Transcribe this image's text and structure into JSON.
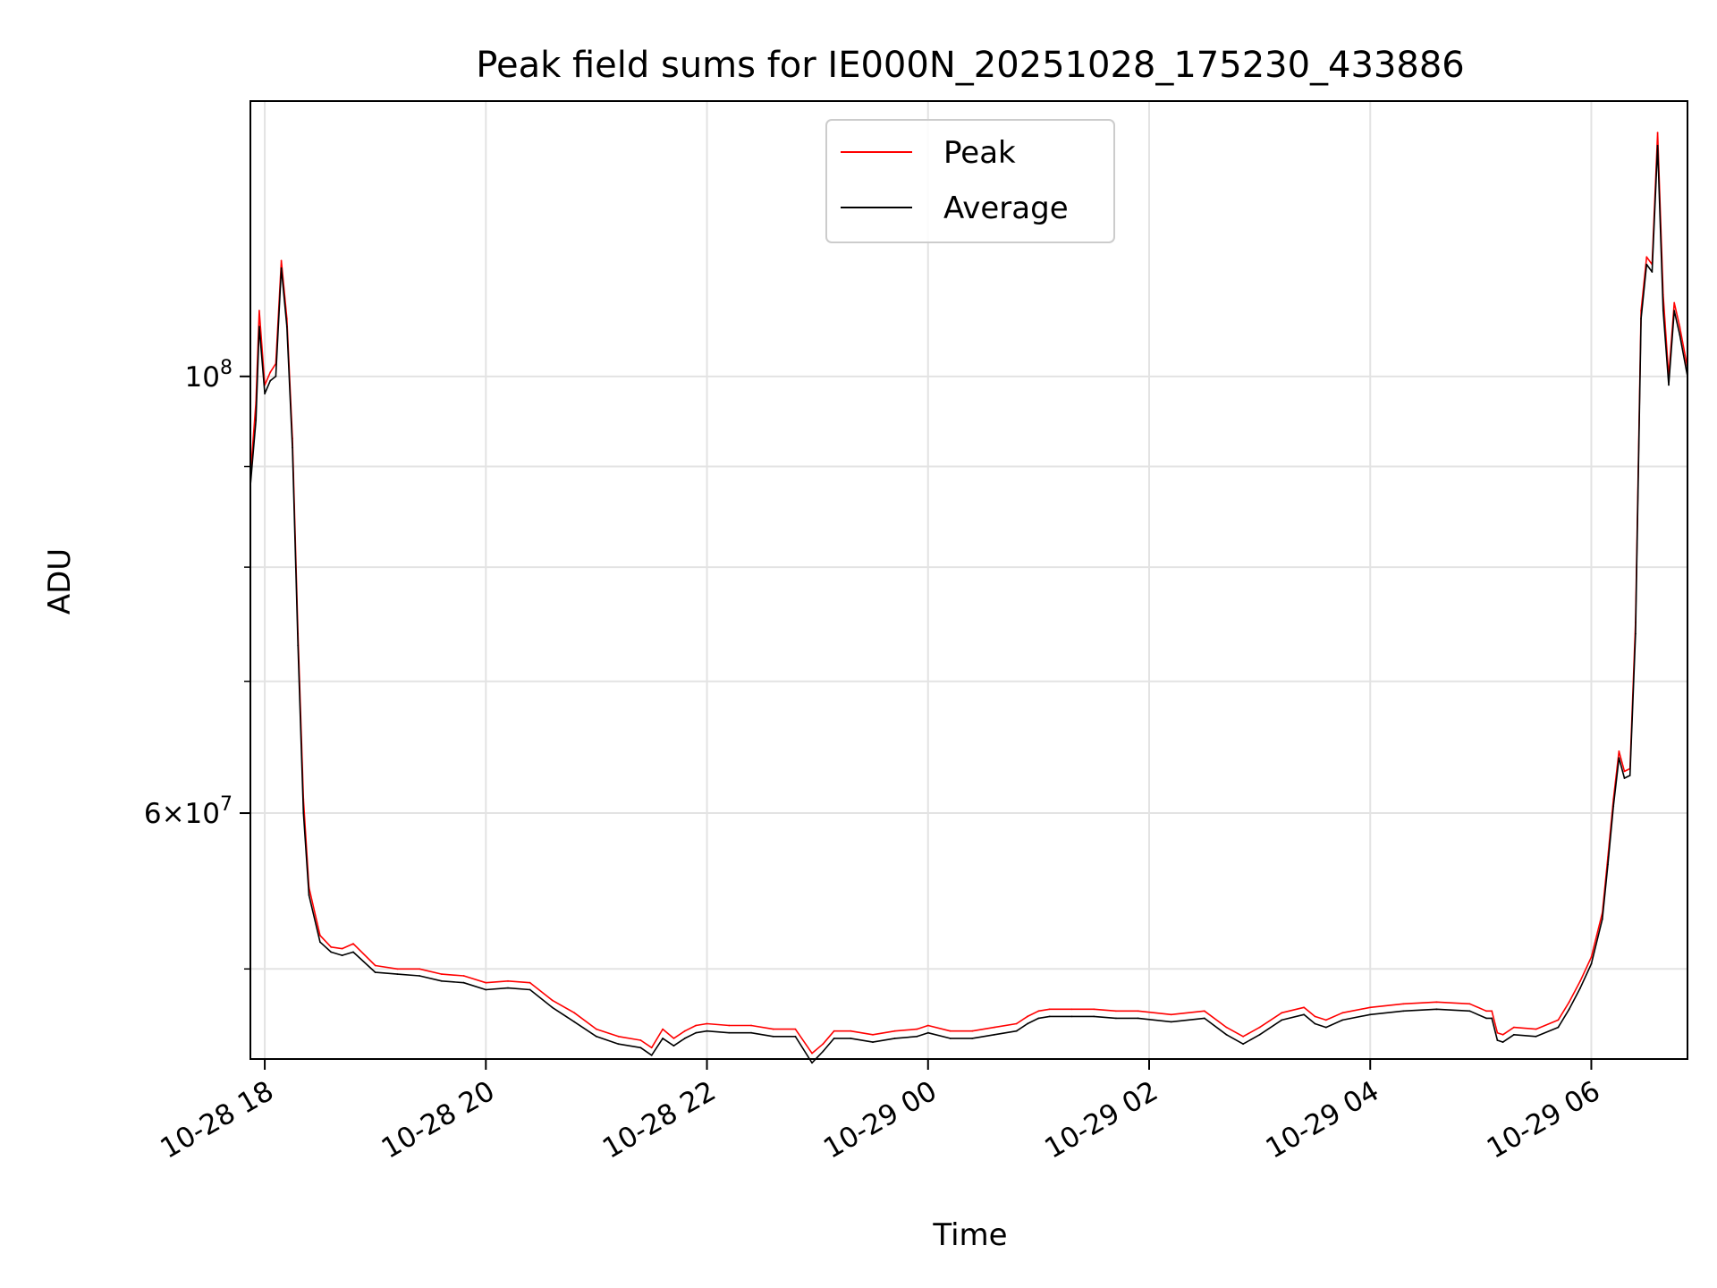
{
  "chart_data": {
    "type": "line",
    "title": "Peak field sums for IE000N_20251028_175230_433886",
    "xlabel": "Time",
    "ylabel": "ADU",
    "yscale": "log",
    "ylim": [
      45000000,
      138000000
    ],
    "xlim_hours": [
      17.87,
      30.87
    ],
    "grid": true,
    "legend_position": "upper-center",
    "x_ticks": [
      {
        "hour": 18,
        "label": "10-28 18"
      },
      {
        "hour": 20,
        "label": "10-28 20"
      },
      {
        "hour": 22,
        "label": "10-28 22"
      },
      {
        "hour": 24,
        "label": "10-29 00"
      },
      {
        "hour": 26,
        "label": "10-29 02"
      },
      {
        "hour": 28,
        "label": "10-29 04"
      },
      {
        "hour": 30,
        "label": "10-29 06"
      }
    ],
    "y_major_ticks": [
      {
        "value": 100000000,
        "base": "10",
        "exp": "8",
        "label": "10^8"
      },
      {
        "value": 60000000,
        "mant": "6",
        "base": "10",
        "exp": "7",
        "label": "6×10^7"
      }
    ],
    "y_minor_ticks": [
      50000000,
      70000000,
      80000000,
      90000000
    ],
    "x": [
      17.87,
      17.92,
      17.95,
      18.0,
      18.05,
      18.1,
      18.15,
      18.2,
      18.25,
      18.3,
      18.35,
      18.4,
      18.5,
      18.6,
      18.7,
      18.8,
      19.0,
      19.2,
      19.4,
      19.6,
      19.8,
      20.0,
      20.2,
      20.4,
      20.6,
      20.8,
      21.0,
      21.2,
      21.4,
      21.5,
      21.6,
      21.7,
      21.8,
      21.9,
      22.0,
      22.2,
      22.4,
      22.6,
      22.8,
      22.95,
      23.05,
      23.15,
      23.3,
      23.5,
      23.7,
      23.9,
      24.0,
      24.2,
      24.4,
      24.6,
      24.8,
      24.9,
      25.0,
      25.1,
      25.3,
      25.5,
      25.7,
      25.9,
      26.2,
      26.5,
      26.7,
      26.85,
      27.0,
      27.2,
      27.4,
      27.5,
      27.6,
      27.75,
      28.0,
      28.3,
      28.6,
      28.9,
      29.05,
      29.1,
      29.15,
      29.2,
      29.3,
      29.5,
      29.7,
      29.8,
      29.9,
      30.0,
      30.1,
      30.15,
      30.2,
      30.25,
      30.3,
      30.35,
      30.4,
      30.45,
      30.5,
      30.55,
      30.6,
      30.65,
      30.7,
      30.75,
      30.8,
      30.87
    ],
    "series": [
      {
        "name": "Peak",
        "color": "#ff0000",
        "values": [
          89000000,
          97000000,
          108000000,
          99000000,
          100500000,
          101500000,
          114500000,
          107000000,
          93000000,
          74000000,
          61000000,
          55000000,
          52000000,
          51300000,
          51200000,
          51500000,
          50200000,
          50000000,
          50000000,
          49700000,
          49600000,
          49200000,
          49300000,
          49200000,
          48200000,
          47500000,
          46600000,
          46200000,
          46000000,
          45600000,
          46600000,
          46100000,
          46500000,
          46800000,
          46900000,
          46800000,
          46800000,
          46600000,
          46600000,
          45300000,
          45800000,
          46500000,
          46500000,
          46300000,
          46500000,
          46600000,
          46800000,
          46500000,
          46500000,
          46700000,
          46900000,
          47300000,
          47600000,
          47700000,
          47700000,
          47700000,
          47600000,
          47600000,
          47400000,
          47600000,
          46700000,
          46200000,
          46700000,
          47500000,
          47800000,
          47300000,
          47100000,
          47500000,
          47800000,
          48000000,
          48100000,
          48000000,
          47600000,
          47600000,
          46400000,
          46300000,
          46700000,
          46600000,
          47100000,
          48100000,
          49300000,
          50700000,
          53400000,
          57000000,
          61000000,
          64500000,
          63000000,
          63200000,
          75000000,
          108000000,
          115000000,
          114000000,
          133000000,
          110000000,
          100000000,
          109000000,
          106000000,
          101000000
        ]
      },
      {
        "name": "Average",
        "color": "#000000",
        "values": [
          88000000,
          95000000,
          106000000,
          98000000,
          99500000,
          100000000,
          113500000,
          106000000,
          92000000,
          73000000,
          60000000,
          54500000,
          51600000,
          51000000,
          50800000,
          51000000,
          49800000,
          49700000,
          49600000,
          49300000,
          49200000,
          48800000,
          48900000,
          48800000,
          47800000,
          47000000,
          46200000,
          45800000,
          45600000,
          45200000,
          46100000,
          45700000,
          46100000,
          46400000,
          46500000,
          46400000,
          46400000,
          46200000,
          46200000,
          44800000,
          45400000,
          46100000,
          46100000,
          45900000,
          46100000,
          46200000,
          46400000,
          46100000,
          46100000,
          46300000,
          46500000,
          46900000,
          47200000,
          47300000,
          47300000,
          47300000,
          47200000,
          47200000,
          47000000,
          47200000,
          46300000,
          45800000,
          46300000,
          47100000,
          47400000,
          46900000,
          46700000,
          47100000,
          47400000,
          47600000,
          47700000,
          47600000,
          47200000,
          47200000,
          46000000,
          45900000,
          46300000,
          46200000,
          46700000,
          47700000,
          48900000,
          50300000,
          53000000,
          56500000,
          60500000,
          64000000,
          62500000,
          62700000,
          74000000,
          107000000,
          114000000,
          113000000,
          131000000,
          108000000,
          99000000,
          108000000,
          105000000,
          100000000
        ]
      }
    ]
  }
}
